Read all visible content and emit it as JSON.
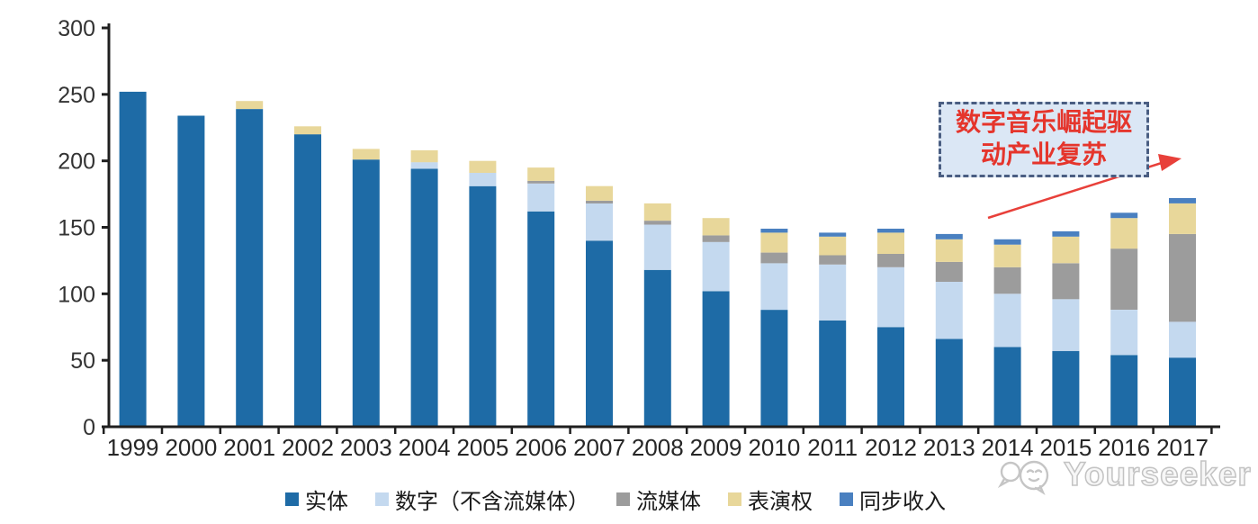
{
  "chart_data": {
    "type": "bar",
    "stacked": true,
    "title": "",
    "xlabel": "",
    "ylabel": "",
    "categories": [
      "1999",
      "2000",
      "2001",
      "2002",
      "2003",
      "2004",
      "2005",
      "2006",
      "2007",
      "2008",
      "2009",
      "2010",
      "2011",
      "2012",
      "2013",
      "2014",
      "2015",
      "2016",
      "2017"
    ],
    "series": [
      {
        "name": "实体",
        "color": "#1E6BA6",
        "values": [
          252,
          234,
          239,
          220,
          201,
          194,
          181,
          162,
          140,
          118,
          102,
          88,
          80,
          75,
          66,
          60,
          57,
          54,
          52
        ]
      },
      {
        "name": "数字（不含流媒体）",
        "color": "#C4D9EF",
        "values": [
          0,
          0,
          0,
          0,
          0,
          5,
          10,
          21,
          28,
          34,
          37,
          35,
          42,
          45,
          43,
          40,
          39,
          34,
          27
        ]
      },
      {
        "name": "流媒体",
        "color": "#9C9C9C",
        "values": [
          0,
          0,
          0,
          0,
          0,
          0,
          0,
          2,
          2,
          3,
          5,
          8,
          7,
          10,
          15,
          20,
          27,
          46,
          66
        ]
      },
      {
        "name": "表演权",
        "color": "#E8D79A",
        "values": [
          0,
          0,
          6,
          6,
          8,
          9,
          9,
          10,
          11,
          13,
          13,
          15,
          14,
          16,
          17,
          17,
          20,
          23,
          23
        ]
      },
      {
        "name": "同步收入",
        "color": "#4A80C0",
        "values": [
          0,
          0,
          0,
          0,
          0,
          0,
          0,
          0,
          0,
          0,
          0,
          3,
          3,
          3,
          4,
          4,
          4,
          4,
          4
        ]
      }
    ],
    "ylim": [
      0,
      300
    ],
    "yticks": [
      0,
      50,
      100,
      150,
      200,
      250,
      300
    ],
    "grid": false,
    "legend_position": "bottom"
  },
  "annotation": {
    "line1": "数字音乐崛起驱",
    "line2": "动产业复苏",
    "text_color": "#E5352C",
    "box_fill": "#DBE7F5",
    "box_border": "#4A5E82",
    "arrow_color": "#E8403A"
  },
  "axis": {
    "line_color": "#1F1F1F",
    "label_color": "#333333"
  },
  "watermark": {
    "text": "Yourseeker",
    "logo": "chat-bubbles-smiley-logo",
    "color": "#bcbcbc"
  }
}
